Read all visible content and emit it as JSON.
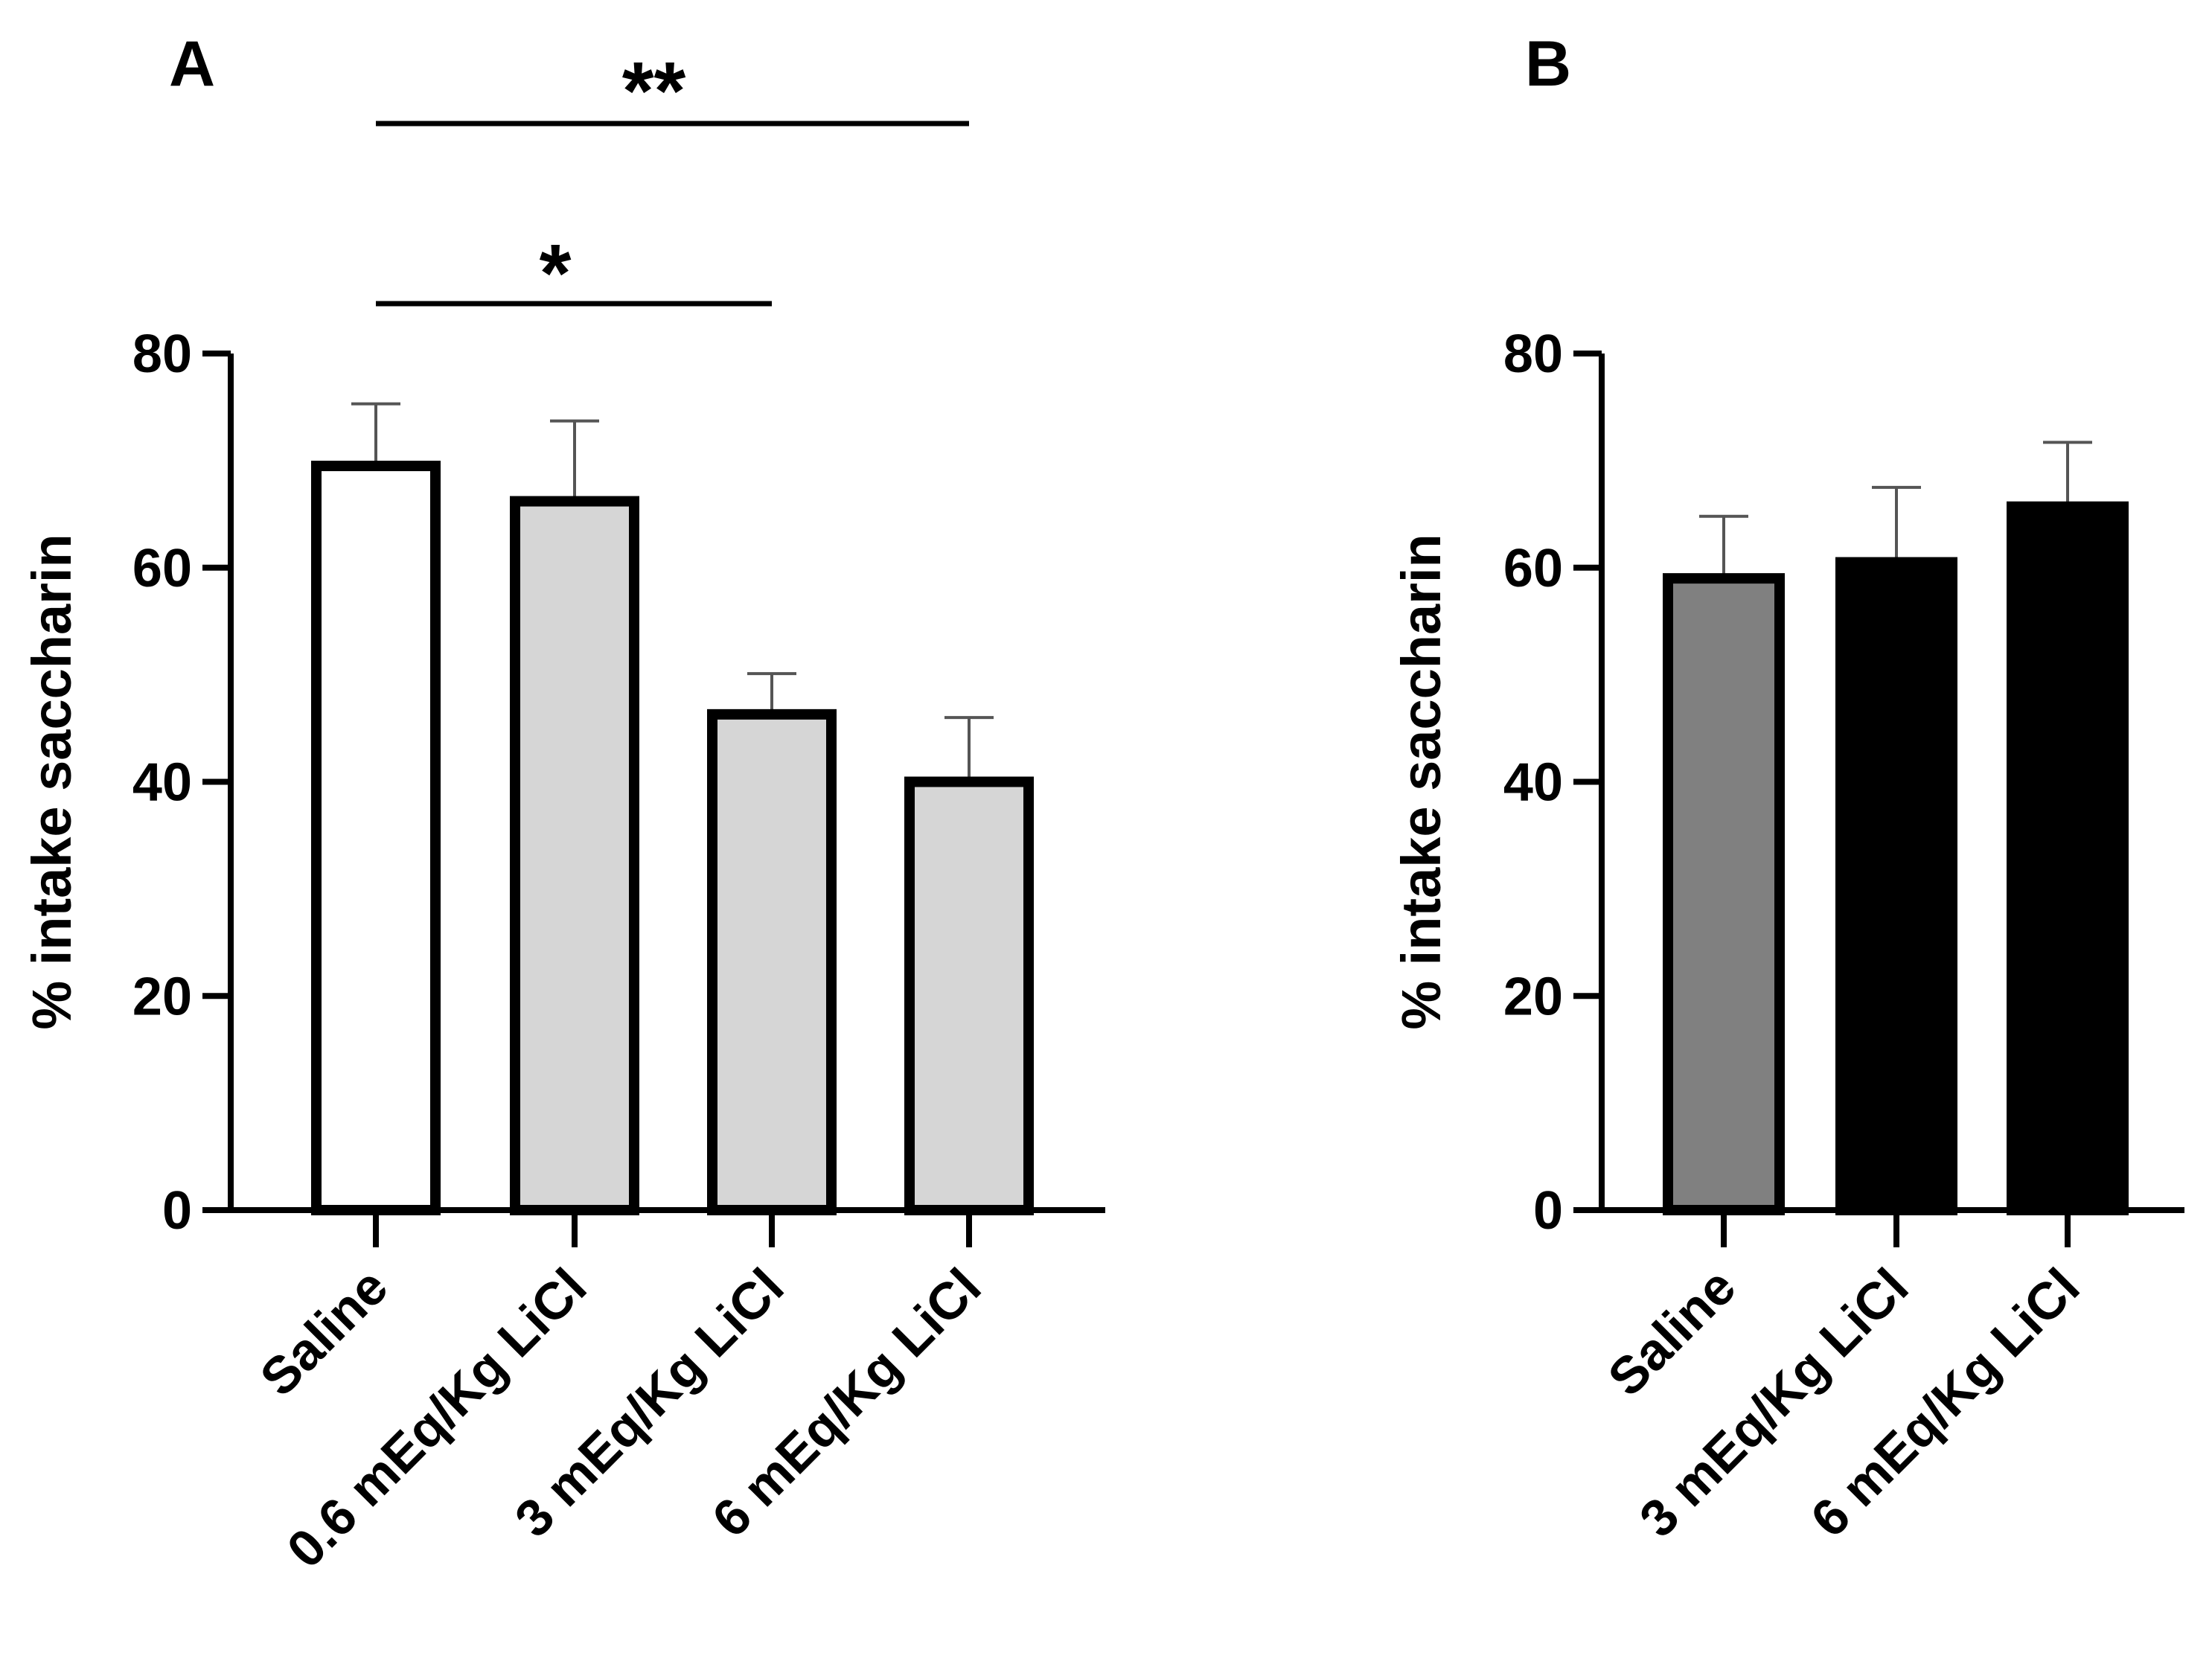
{
  "chart_data": [
    {
      "panel": "A",
      "type": "bar",
      "ylabel": "% intake saccharin",
      "ylim": [
        0,
        80
      ],
      "yticks": [
        0,
        20,
        40,
        60,
        80
      ],
      "categories": [
        "Saline",
        "0.6 mEq/Kg LiCl",
        "3 mEq/Kg LiCl",
        "6 mEq/Kg LiCl"
      ],
      "values": [
        69.5,
        66.2,
        46.3,
        40.0
      ],
      "errors": [
        5.8,
        7.5,
        3.8,
        6.0
      ],
      "colors": [
        "#ffffff",
        "#d6d6d6",
        "#d6d6d6",
        "#d6d6d6"
      ],
      "significance": [
        {
          "from": 0,
          "to": 3,
          "label": "**"
        },
        {
          "from": 0,
          "to": 2,
          "label": "*"
        }
      ]
    },
    {
      "panel": "B",
      "type": "bar",
      "ylabel": "% intake saccharin",
      "ylim": [
        0,
        80
      ],
      "yticks": [
        0,
        20,
        40,
        60,
        80
      ],
      "categories": [
        "Saline",
        "3 mEq/Kg LiCl",
        "6 mEq/Kg LiCl"
      ],
      "values": [
        59.0,
        60.5,
        65.7
      ],
      "errors": [
        5.8,
        7.0,
        6.0
      ],
      "colors": [
        "#808080",
        "#000000",
        "#000000"
      ],
      "significance": []
    }
  ]
}
